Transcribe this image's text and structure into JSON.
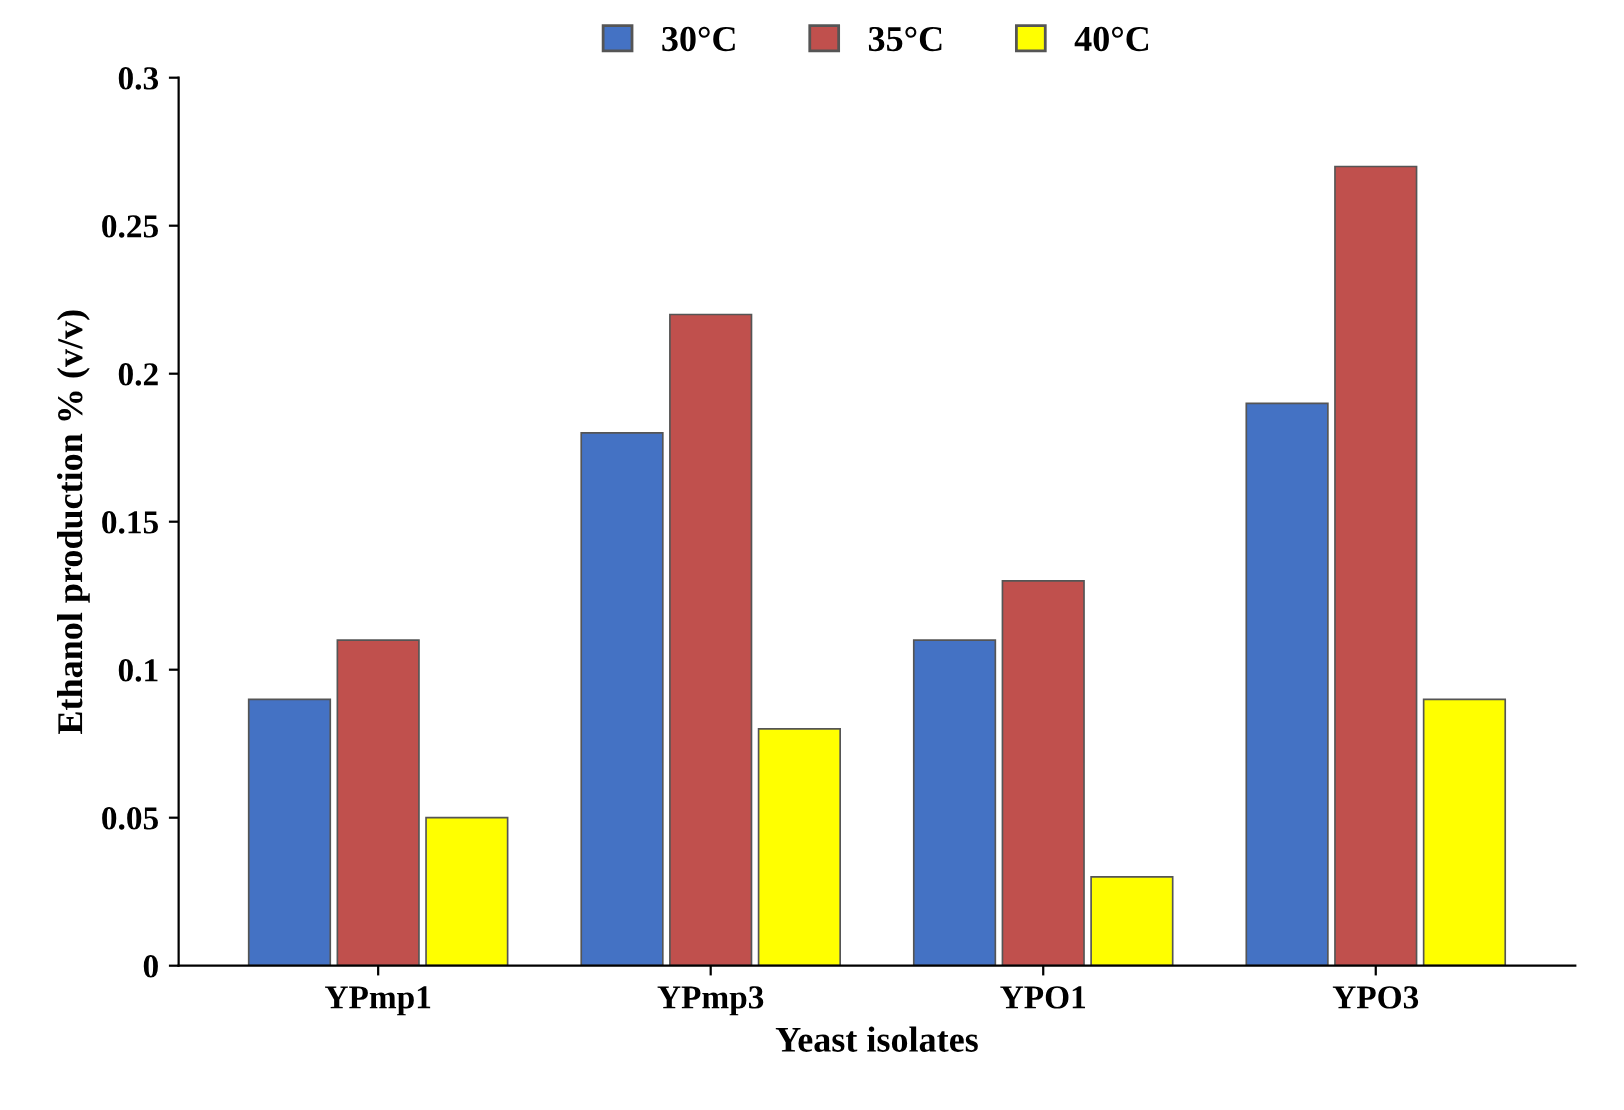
{
  "chart_data": {
    "type": "bar",
    "xlabel": "Yeast isolates",
    "ylabel": "Ethanol production % (v/v)",
    "categories": [
      "YPmp1",
      "YPmp3",
      "YPO1",
      "YPO3"
    ],
    "series": [
      {
        "name": "30°C",
        "color": "#4472c4",
        "values": [
          0.09,
          0.18,
          0.11,
          0.19
        ]
      },
      {
        "name": "35°C",
        "color": "#c0504d",
        "values": [
          0.11,
          0.22,
          0.13,
          0.27
        ]
      },
      {
        "name": "40°C",
        "color": "#ffff00",
        "values": [
          0.05,
          0.08,
          0.03,
          0.09
        ]
      }
    ],
    "ylim": [
      0,
      0.3
    ],
    "yticks": [
      0,
      0.05,
      0.1,
      0.15,
      0.2,
      0.25,
      0.3
    ],
    "grid": false,
    "legend": "top"
  }
}
